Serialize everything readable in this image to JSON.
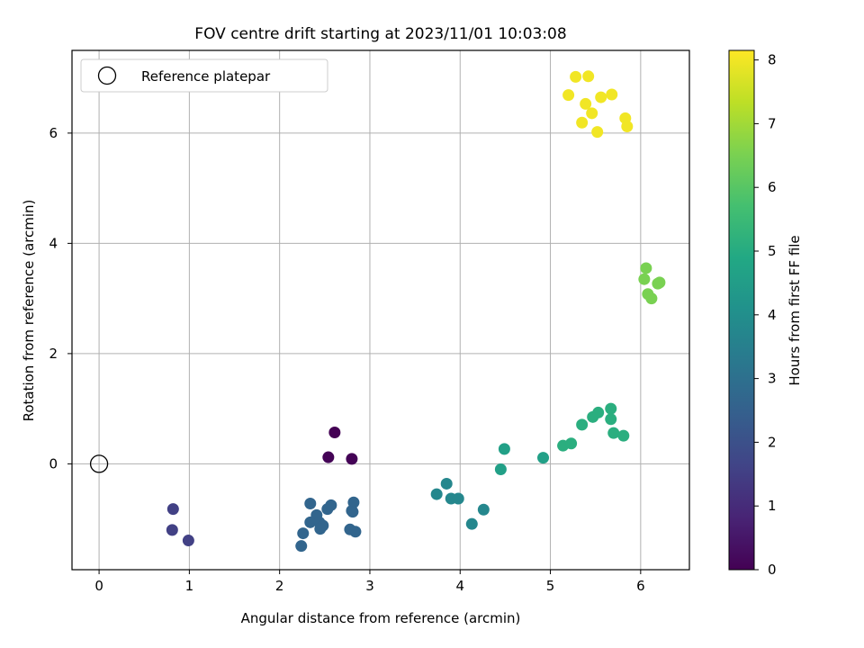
{
  "chart_data": {
    "type": "scatter",
    "title": "FOV centre drift starting at 2023/11/01 10:03:08",
    "xlabel": "Angular distance from reference (arcmin)",
    "ylabel": "Rotation from reference (arcmin)",
    "xlim": [
      -0.3,
      6.54
    ],
    "ylim": [
      -1.92,
      7.5
    ],
    "xticks": [
      0,
      1,
      2,
      3,
      4,
      5,
      6
    ],
    "yticks": [
      0,
      2,
      4,
      6
    ],
    "grid": true,
    "legend": {
      "placement": "upper-left",
      "entries": [
        "Reference platepar"
      ]
    },
    "reference_point": {
      "x": 0,
      "y": 0
    },
    "colorbar": {
      "label": "Hours from first FF file",
      "range": [
        0,
        8.15
      ],
      "ticks": [
        0,
        1,
        2,
        3,
        4,
        5,
        6,
        7,
        8
      ],
      "colormap": "viridis"
    },
    "points": [
      {
        "x": 2.61,
        "y": 0.57,
        "hours": 0.0
      },
      {
        "x": 2.54,
        "y": 0.12,
        "hours": 0.05
      },
      {
        "x": 2.8,
        "y": 0.09,
        "hours": 0.05
      },
      {
        "x": 0.82,
        "y": -0.82,
        "hours": 1.55
      },
      {
        "x": 0.81,
        "y": -1.2,
        "hours": 1.55
      },
      {
        "x": 0.99,
        "y": -1.39,
        "hours": 1.55
      },
      {
        "x": 2.34,
        "y": -0.72,
        "hours": 2.65
      },
      {
        "x": 2.41,
        "y": -0.93,
        "hours": 2.65
      },
      {
        "x": 2.34,
        "y": -1.06,
        "hours": 2.65
      },
      {
        "x": 2.44,
        "y": -1.06,
        "hours": 2.65
      },
      {
        "x": 2.48,
        "y": -1.12,
        "hours": 2.65
      },
      {
        "x": 2.45,
        "y": -1.18,
        "hours": 2.65
      },
      {
        "x": 2.26,
        "y": -1.26,
        "hours": 2.65
      },
      {
        "x": 2.24,
        "y": -1.49,
        "hours": 2.65
      },
      {
        "x": 2.53,
        "y": -0.82,
        "hours": 2.65
      },
      {
        "x": 2.57,
        "y": -0.75,
        "hours": 2.65
      },
      {
        "x": 2.82,
        "y": -0.7,
        "hours": 2.65
      },
      {
        "x": 2.8,
        "y": -0.85,
        "hours": 2.65
      },
      {
        "x": 2.81,
        "y": -0.87,
        "hours": 2.65
      },
      {
        "x": 2.78,
        "y": -1.19,
        "hours": 2.65
      },
      {
        "x": 2.84,
        "y": -1.23,
        "hours": 2.65
      },
      {
        "x": 3.74,
        "y": -0.55,
        "hours": 3.75
      },
      {
        "x": 3.85,
        "y": -0.36,
        "hours": 3.75
      },
      {
        "x": 3.9,
        "y": -0.63,
        "hours": 3.75
      },
      {
        "x": 3.98,
        "y": -0.63,
        "hours": 3.75
      },
      {
        "x": 4.13,
        "y": -1.09,
        "hours": 3.75
      },
      {
        "x": 4.26,
        "y": -0.83,
        "hours": 3.75
      },
      {
        "x": 4.45,
        "y": -0.1,
        "hours": 4.6
      },
      {
        "x": 4.49,
        "y": 0.27,
        "hours": 4.6
      },
      {
        "x": 4.92,
        "y": 0.11,
        "hours": 4.6
      },
      {
        "x": 5.14,
        "y": 0.33,
        "hours": 5.1
      },
      {
        "x": 5.23,
        "y": 0.37,
        "hours": 5.1
      },
      {
        "x": 5.35,
        "y": 0.71,
        "hours": 5.1
      },
      {
        "x": 5.47,
        "y": 0.85,
        "hours": 5.1
      },
      {
        "x": 5.53,
        "y": 0.93,
        "hours": 5.1
      },
      {
        "x": 5.67,
        "y": 1.0,
        "hours": 5.1
      },
      {
        "x": 5.67,
        "y": 0.81,
        "hours": 5.1
      },
      {
        "x": 5.7,
        "y": 0.56,
        "hours": 5.1
      },
      {
        "x": 5.81,
        "y": 0.51,
        "hours": 5.1
      },
      {
        "x": 6.06,
        "y": 3.55,
        "hours": 6.5
      },
      {
        "x": 6.04,
        "y": 3.35,
        "hours": 6.5
      },
      {
        "x": 6.19,
        "y": 3.27,
        "hours": 6.5
      },
      {
        "x": 6.21,
        "y": 3.29,
        "hours": 6.5
      },
      {
        "x": 6.08,
        "y": 3.08,
        "hours": 6.5
      },
      {
        "x": 6.12,
        "y": 3.0,
        "hours": 6.5
      },
      {
        "x": 5.28,
        "y": 7.02,
        "hours": 8.0
      },
      {
        "x": 5.42,
        "y": 7.03,
        "hours": 8.0
      },
      {
        "x": 5.2,
        "y": 6.69,
        "hours": 8.0
      },
      {
        "x": 5.39,
        "y": 6.53,
        "hours": 8.0
      },
      {
        "x": 5.56,
        "y": 6.65,
        "hours": 8.0
      },
      {
        "x": 5.68,
        "y": 6.7,
        "hours": 8.0
      },
      {
        "x": 5.46,
        "y": 6.36,
        "hours": 8.0
      },
      {
        "x": 5.35,
        "y": 6.19,
        "hours": 8.0
      },
      {
        "x": 5.52,
        "y": 6.02,
        "hours": 8.0
      },
      {
        "x": 5.83,
        "y": 6.27,
        "hours": 8.0
      },
      {
        "x": 5.85,
        "y": 6.12,
        "hours": 8.0
      }
    ]
  }
}
